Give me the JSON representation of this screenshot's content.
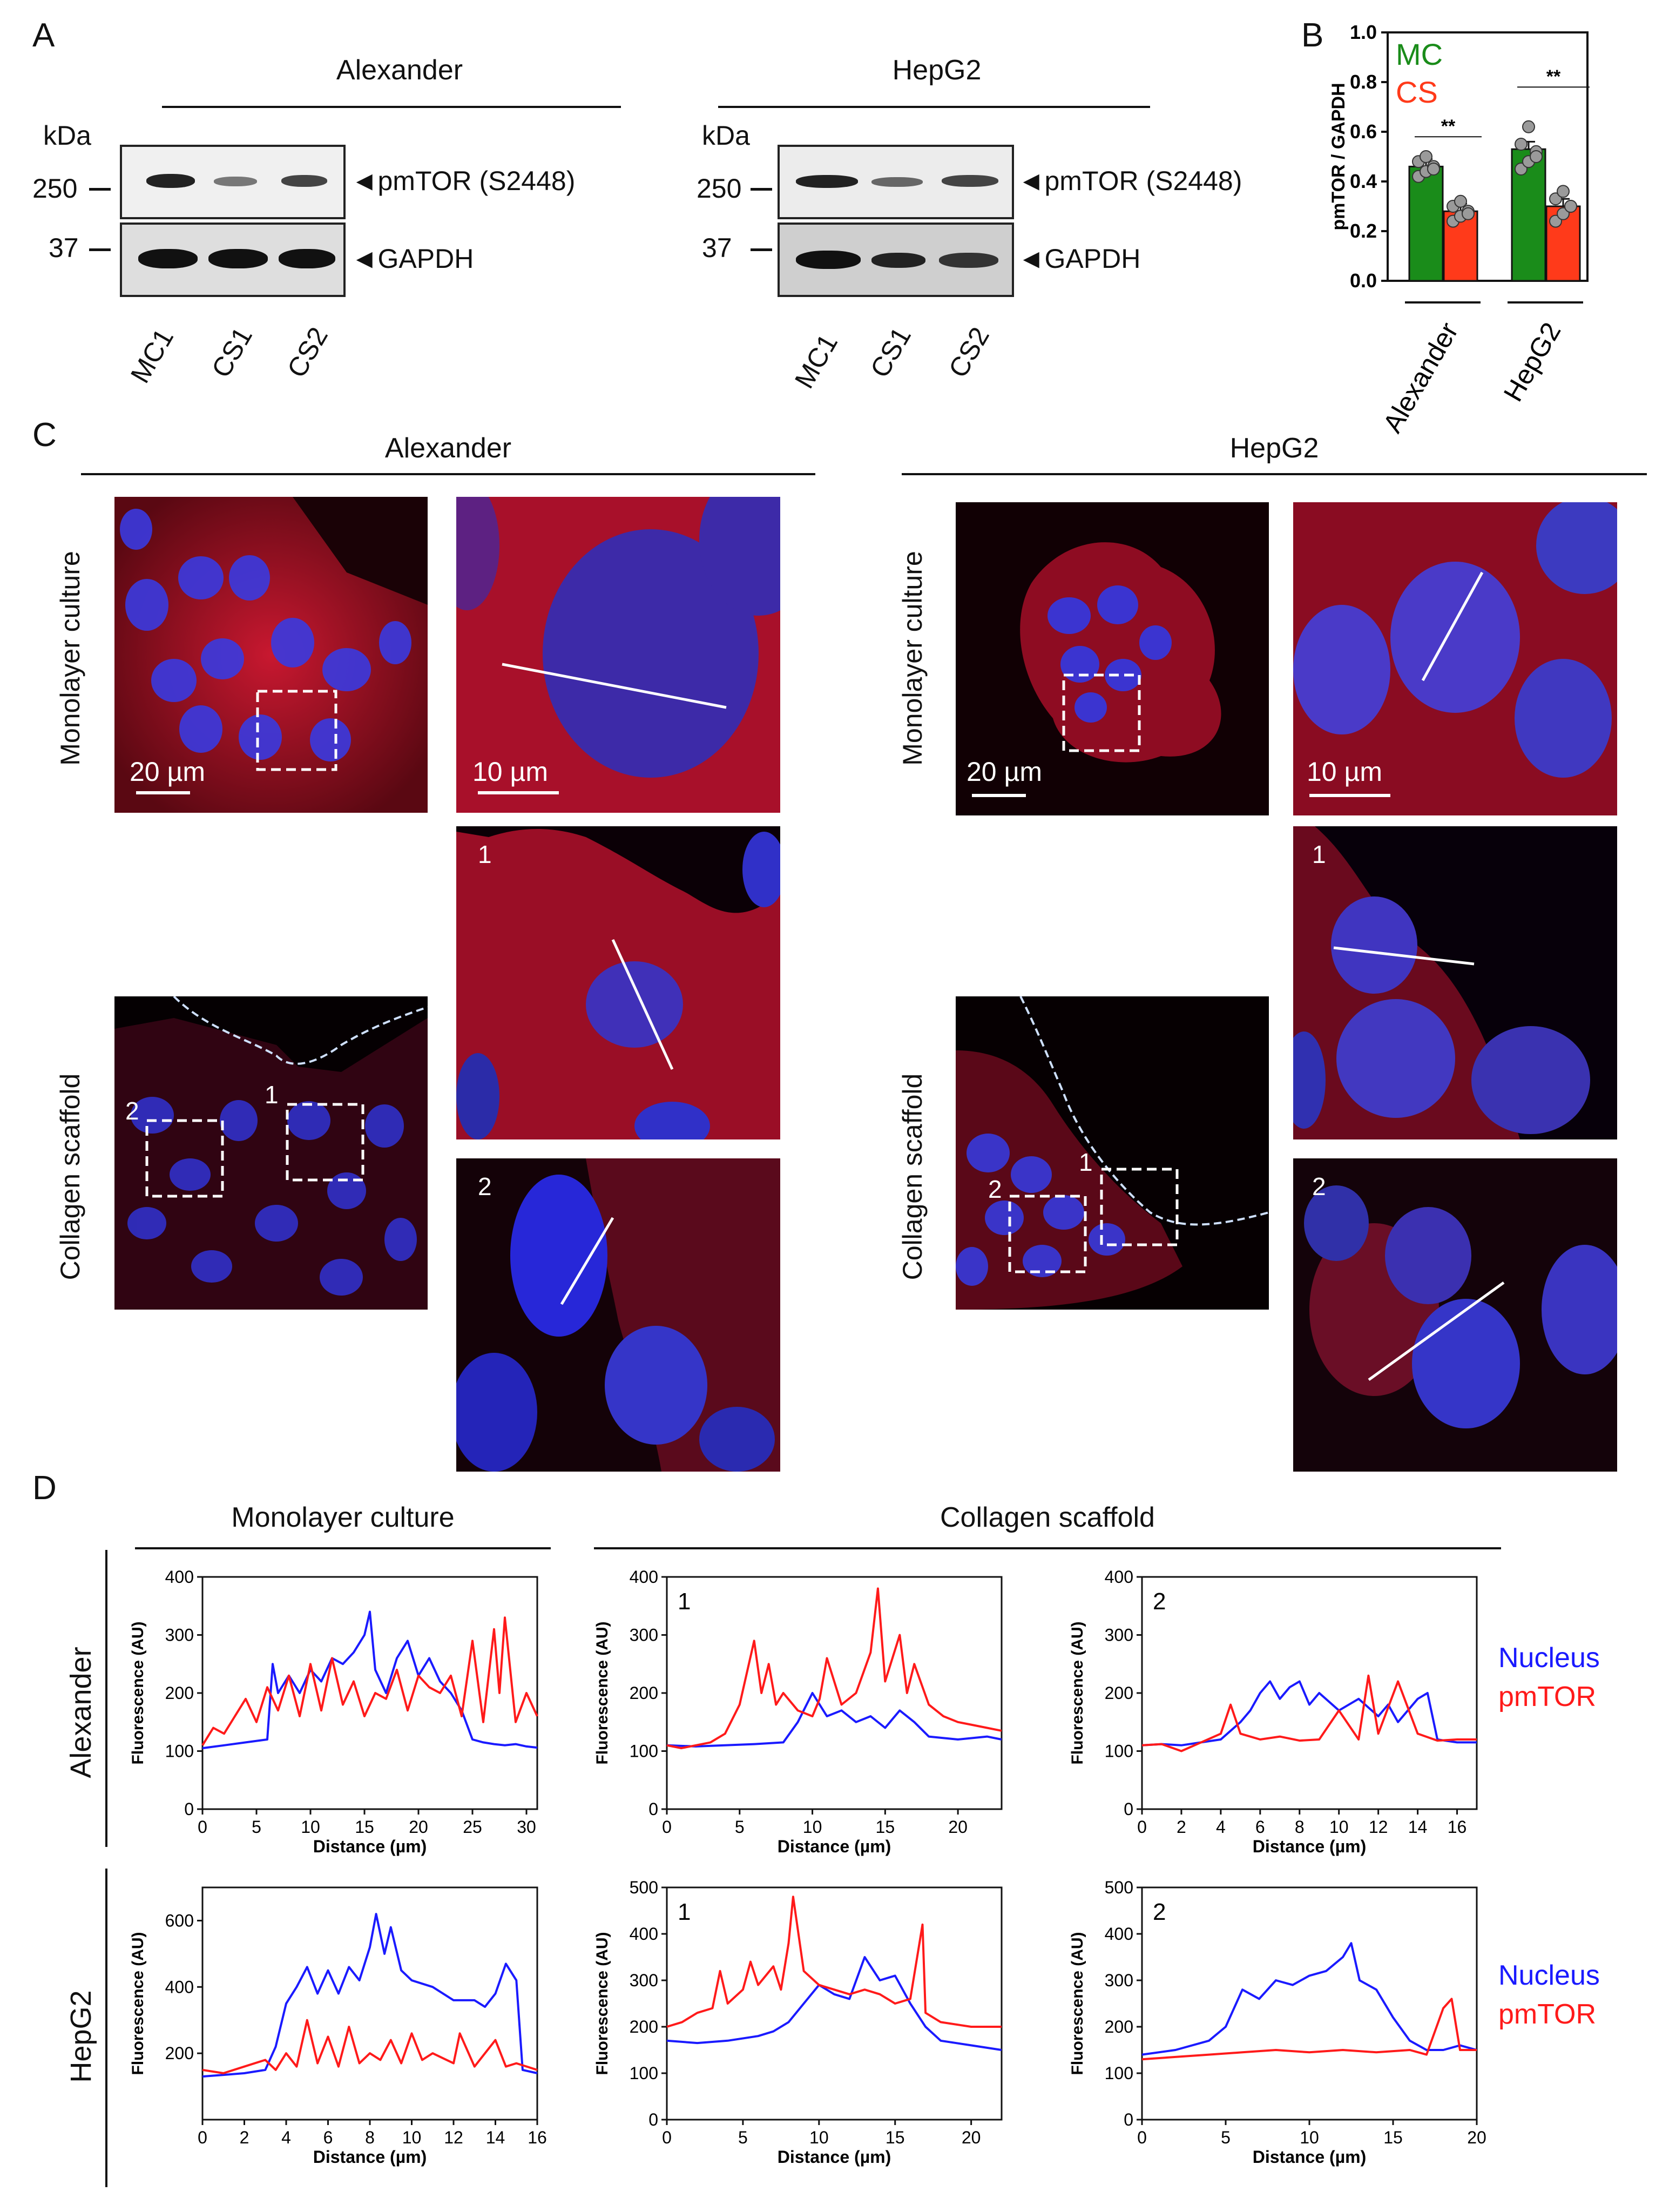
{
  "panelA": {
    "letter": "A",
    "groups": [
      {
        "title": "Alexander",
        "kda_label": "kDa",
        "kda_250": "250",
        "kda_37": "37",
        "band_labels": [
          "pmTOR (S2448)",
          "GAPDH"
        ],
        "lanes": [
          "MC1",
          "CS1",
          "CS2"
        ]
      },
      {
        "title": "HepG2",
        "kda_label": "kDa",
        "kda_250": "250",
        "kda_37": "37",
        "band_labels": [
          "pmTOR (S2448)",
          "GAPDH"
        ],
        "lanes": [
          "MC1",
          "CS1",
          "CS2"
        ]
      }
    ]
  },
  "panelB": {
    "letter": "B",
    "legend": [
      {
        "label": "MC",
        "color": "#1a8c1a"
      },
      {
        "label": "CS",
        "color": "#ff3a1a"
      }
    ],
    "significance": [
      "**",
      "**"
    ]
  },
  "panelC": {
    "letter": "C",
    "groups": [
      {
        "title": "Alexander",
        "row_labels": [
          "Monolayer culture",
          "Collagen scaffold"
        ],
        "scale_bars": [
          "20 µm",
          "10 µm"
        ],
        "inset_numbers": [
          "1",
          "2"
        ]
      },
      {
        "title": "HepG2",
        "row_labels": [
          "Monolayer culture",
          "Collagen scaffold"
        ],
        "scale_bars": [
          "20 µm",
          "10 µm"
        ],
        "inset_numbers": [
          "1",
          "2"
        ]
      }
    ]
  },
  "panelD": {
    "letter": "D",
    "column_headers": [
      "Monolayer culture",
      "Collagen scaffold"
    ],
    "row_labels": [
      "Alexander",
      "HepG2"
    ],
    "legend_rows": [
      [
        "Nucleus",
        "pmTOR"
      ],
      [
        "Nucleus",
        "pmTOR"
      ]
    ],
    "colors": {
      "nucleus": "#1a1aff",
      "pmtor": "#ff1a1a"
    }
  },
  "chart_data": [
    {
      "id": "B",
      "type": "bar",
      "categories": [
        "Alexander",
        "HepG2"
      ],
      "series": [
        {
          "name": "MC",
          "values": [
            0.46,
            0.53
          ]
        },
        {
          "name": "CS",
          "values": [
            0.28,
            0.3
          ]
        }
      ],
      "points": [
        [
          [
            0.42,
            0.44,
            0.46,
            0.48,
            0.5,
            0.45
          ],
          [
            0.24,
            0.26,
            0.28,
            0.3,
            0.32,
            0.27
          ]
        ],
        [
          [
            0.45,
            0.48,
            0.52,
            0.55,
            0.62,
            0.5
          ],
          [
            0.24,
            0.27,
            0.3,
            0.33,
            0.36,
            0.3
          ]
        ]
      ],
      "ylabel": "pmTOR / GAPDH",
      "ylim": [
        0,
        1.0
      ],
      "yticks": [
        "0.0",
        "0.2",
        "0.4",
        "0.6",
        "0.8",
        "1.0"
      ]
    },
    {
      "id": "D1",
      "type": "line",
      "xlabel": "Distance (µm)",
      "ylabel": "Fluorescence (AU)",
      "xlim": [
        0,
        31
      ],
      "ylim": [
        0,
        400
      ],
      "xticks": [
        "0",
        "5",
        "10",
        "15",
        "20",
        "25",
        "30"
      ],
      "yticks": [
        "0",
        "100",
        "200",
        "300",
        "400"
      ],
      "inset": "",
      "series": [
        {
          "name": "Nucleus",
          "x": [
            0,
            2,
            4,
            6,
            6.5,
            7,
            8,
            9,
            10,
            11,
            12,
            13,
            14,
            15,
            15.5,
            16,
            17,
            18,
            19,
            20,
            21,
            22,
            23,
            24,
            25,
            26,
            27,
            28,
            29,
            30,
            31
          ],
          "y": [
            105,
            110,
            115,
            120,
            250,
            200,
            230,
            200,
            240,
            220,
            260,
            250,
            270,
            300,
            340,
            240,
            200,
            260,
            290,
            230,
            260,
            220,
            200,
            170,
            120,
            115,
            112,
            110,
            112,
            108,
            106
          ]
        },
        {
          "name": "pmTOR",
          "x": [
            0,
            1,
            2,
            3,
            4,
            5,
            6,
            7,
            8,
            9,
            10,
            11,
            12,
            13,
            14,
            15,
            16,
            17,
            18,
            19,
            20,
            21,
            22,
            23,
            24,
            25,
            26,
            27,
            27.5,
            28,
            29,
            30,
            31
          ],
          "y": [
            110,
            140,
            130,
            160,
            190,
            150,
            210,
            170,
            230,
            160,
            250,
            170,
            260,
            180,
            220,
            160,
            200,
            190,
            240,
            170,
            230,
            210,
            200,
            230,
            160,
            290,
            150,
            310,
            200,
            330,
            150,
            200,
            160
          ]
        }
      ]
    },
    {
      "id": "D2",
      "type": "line",
      "xlabel": "Distance (µm)",
      "ylabel": "Fluorescence (AU)",
      "xlim": [
        0,
        23
      ],
      "ylim": [
        0,
        400
      ],
      "xticks": [
        "0",
        "5",
        "10",
        "15",
        "20"
      ],
      "yticks": [
        "0",
        "100",
        "200",
        "300",
        "400"
      ],
      "inset": "1",
      "series": [
        {
          "name": "Nucleus",
          "x": [
            0,
            2,
            4,
            6,
            8,
            9,
            10,
            11,
            12,
            13,
            14,
            15,
            16,
            17,
            18,
            20,
            22,
            23
          ],
          "y": [
            110,
            108,
            110,
            112,
            115,
            150,
            200,
            160,
            170,
            150,
            160,
            140,
            170,
            150,
            125,
            120,
            125,
            120
          ]
        },
        {
          "name": "pmTOR",
          "x": [
            0,
            1,
            2,
            3,
            4,
            5,
            6,
            6.5,
            7,
            7.5,
            8,
            9,
            10,
            10.5,
            11,
            12,
            13,
            14,
            14.5,
            15,
            16,
            16.5,
            17,
            18,
            19,
            20,
            21,
            22,
            23
          ],
          "y": [
            110,
            105,
            110,
            115,
            130,
            180,
            290,
            200,
            250,
            180,
            200,
            170,
            160,
            190,
            260,
            180,
            200,
            270,
            380,
            220,
            300,
            200,
            250,
            180,
            160,
            150,
            145,
            140,
            135
          ]
        }
      ]
    },
    {
      "id": "D3",
      "type": "line",
      "xlabel": "Distance (µm)",
      "ylabel": "Fluorescence (AU)",
      "xlim": [
        0,
        17
      ],
      "ylim": [
        0,
        400
      ],
      "xticks": [
        "0",
        "2",
        "4",
        "6",
        "8",
        "10",
        "12",
        "14",
        "16"
      ],
      "yticks": [
        "0",
        "100",
        "200",
        "300",
        "400"
      ],
      "inset": "2",
      "series": [
        {
          "name": "Nucleus",
          "x": [
            0,
            1,
            2,
            3,
            4,
            5,
            5.5,
            6,
            6.5,
            7,
            7.5,
            8,
            8.5,
            9,
            10,
            11,
            12,
            12.5,
            13,
            14,
            14.5,
            15,
            16,
            17
          ],
          "y": [
            110,
            112,
            110,
            115,
            120,
            150,
            170,
            200,
            220,
            190,
            210,
            220,
            180,
            200,
            170,
            190,
            160,
            180,
            150,
            190,
            200,
            120,
            115,
            115
          ]
        },
        {
          "name": "pmTOR",
          "x": [
            0,
            1,
            2,
            3,
            4,
            4.5,
            5,
            6,
            7,
            8,
            9,
            10,
            11,
            11.5,
            12,
            13,
            14,
            15,
            16,
            17
          ],
          "y": [
            110,
            112,
            100,
            115,
            130,
            180,
            130,
            120,
            125,
            118,
            120,
            170,
            120,
            230,
            130,
            220,
            130,
            118,
            120,
            120
          ]
        }
      ]
    },
    {
      "id": "D4",
      "type": "line",
      "xlabel": "Distance (µm)",
      "ylabel": "Fluorescence (AU)",
      "xlim": [
        0,
        16
      ],
      "ylim": [
        0,
        700
      ],
      "xticks": [
        "0",
        "2",
        "4",
        "6",
        "8",
        "10",
        "12",
        "14",
        "16"
      ],
      "yticks": [
        "200",
        "400",
        "600"
      ],
      "inset": "",
      "series": [
        {
          "name": "Nucleus",
          "x": [
            0,
            1,
            2,
            3,
            3.5,
            4,
            4.5,
            5,
            5.5,
            6,
            6.5,
            7,
            7.5,
            8,
            8.3,
            8.7,
            9,
            9.5,
            10,
            11,
            12,
            13,
            13.5,
            14,
            14.5,
            15,
            15.3,
            16
          ],
          "y": [
            130,
            135,
            140,
            150,
            220,
            350,
            400,
            460,
            380,
            450,
            380,
            460,
            420,
            520,
            620,
            500,
            580,
            450,
            420,
            400,
            360,
            360,
            340,
            380,
            470,
            420,
            150,
            140
          ]
        },
        {
          "name": "pmTOR",
          "x": [
            0,
            1,
            2,
            3,
            3.5,
            4,
            4.5,
            5,
            5.5,
            6,
            6.5,
            7,
            7.5,
            8,
            8.5,
            9,
            9.5,
            10,
            10.5,
            11,
            12,
            12.3,
            13,
            14,
            14.5,
            15,
            16
          ],
          "y": [
            150,
            140,
            160,
            180,
            150,
            200,
            160,
            300,
            170,
            250,
            160,
            280,
            170,
            200,
            180,
            240,
            170,
            260,
            180,
            200,
            170,
            260,
            160,
            240,
            160,
            170,
            150
          ]
        }
      ]
    },
    {
      "id": "D5",
      "type": "line",
      "xlabel": "Distance (µm)",
      "ylabel": "Fluorescence (AU)",
      "xlim": [
        0,
        22
      ],
      "ylim": [
        0,
        500
      ],
      "xticks": [
        "0",
        "5",
        "10",
        "15",
        "20"
      ],
      "yticks": [
        "0",
        "100",
        "200",
        "300",
        "400",
        "500"
      ],
      "inset": "1",
      "series": [
        {
          "name": "Nucleus",
          "x": [
            0,
            2,
            4,
            6,
            7,
            8,
            9,
            10,
            11,
            12,
            13,
            14,
            15,
            16,
            17,
            18,
            20,
            22
          ],
          "y": [
            170,
            165,
            170,
            180,
            190,
            210,
            250,
            290,
            270,
            260,
            350,
            300,
            310,
            250,
            200,
            170,
            160,
            150
          ]
        },
        {
          "name": "pmTOR",
          "x": [
            0,
            1,
            2,
            3,
            3.5,
            4,
            5,
            5.5,
            6,
            7,
            7.5,
            8,
            8.3,
            9,
            10,
            11,
            12,
            13,
            14,
            15,
            16,
            16.8,
            17,
            18,
            20,
            22
          ],
          "y": [
            200,
            210,
            230,
            240,
            320,
            250,
            280,
            340,
            290,
            330,
            280,
            380,
            480,
            320,
            290,
            280,
            270,
            280,
            270,
            250,
            260,
            420,
            230,
            210,
            200,
            200
          ]
        }
      ]
    },
    {
      "id": "D6",
      "type": "line",
      "xlabel": "Distance (µm)",
      "ylabel": "Fluorescence (AU)",
      "xlim": [
        0,
        20
      ],
      "ylim": [
        0,
        500
      ],
      "xticks": [
        "0",
        "5",
        "10",
        "15",
        "20"
      ],
      "yticks": [
        "0",
        "100",
        "200",
        "300",
        "400",
        "500"
      ],
      "inset": "2",
      "series": [
        {
          "name": "Nucleus",
          "x": [
            0,
            2,
            4,
            5,
            6,
            7,
            8,
            9,
            10,
            11,
            12,
            12.5,
            13,
            14,
            15,
            16,
            17,
            18,
            19,
            20
          ],
          "y": [
            140,
            150,
            170,
            200,
            280,
            260,
            300,
            290,
            310,
            320,
            350,
            380,
            300,
            280,
            220,
            170,
            150,
            150,
            160,
            150
          ]
        },
        {
          "name": "pmTOR",
          "x": [
            0,
            2,
            4,
            6,
            8,
            10,
            12,
            14,
            16,
            17,
            18,
            18.5,
            19,
            20
          ],
          "y": [
            130,
            135,
            140,
            145,
            150,
            145,
            150,
            145,
            150,
            140,
            240,
            260,
            150,
            150
          ]
        }
      ]
    }
  ]
}
